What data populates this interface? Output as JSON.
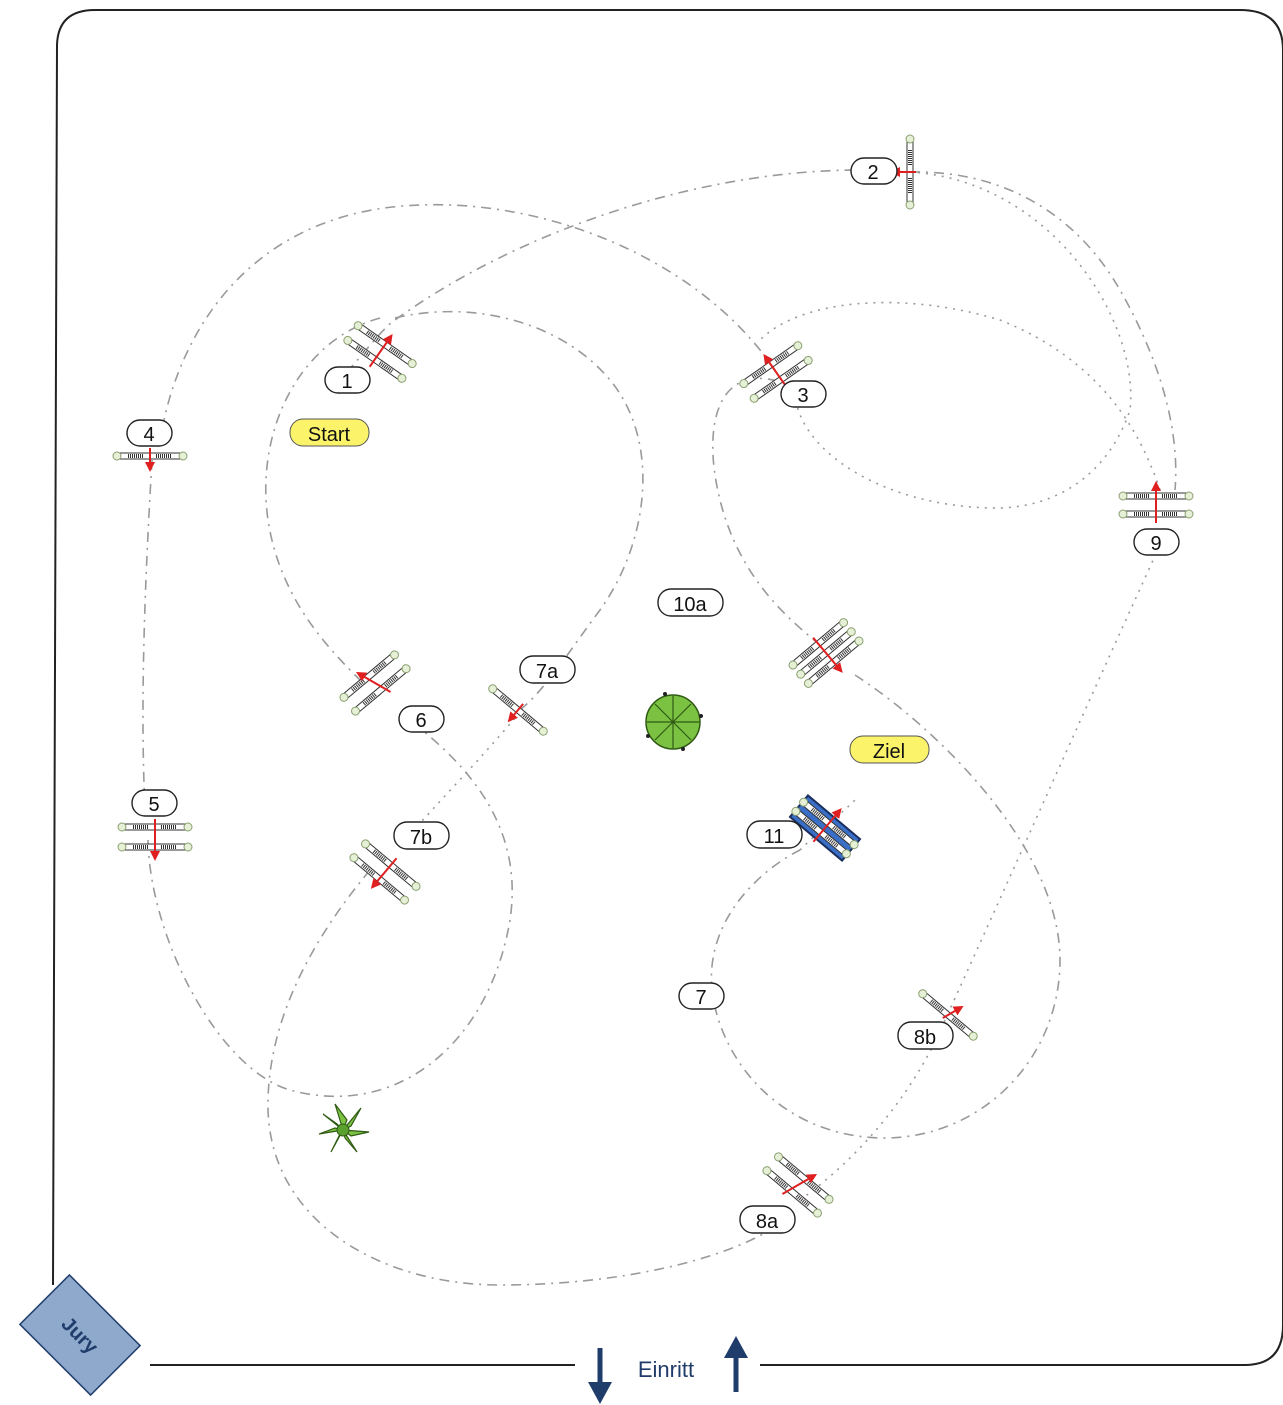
{
  "labels": {
    "start": "Start",
    "finish": "Ziel",
    "jury": "Jury",
    "entrance": "Einritt",
    "obstacle_1": "1",
    "obstacle_2": "2",
    "obstacle_3": "3",
    "obstacle_4": "4",
    "obstacle_5": "5",
    "obstacle_6": "6",
    "obstacle_7a": "7a",
    "obstacle_7b": "7b",
    "obstacle_7": "7",
    "obstacle_8a": "8a",
    "obstacle_8b": "8b",
    "obstacle_9": "9",
    "obstacle_10a": "10a",
    "obstacle_11": "11"
  },
  "colors": {
    "arena_border": "#222222",
    "course_line": "#9a9a9a",
    "start_finish_fill": "#fbf46a",
    "jury_fill": "#8ea9cc",
    "jury_text": "#1f3c6b",
    "entrance_arrow": "#1f3c6b",
    "jump_arrow": "#e02020",
    "water_jump": "#3a6fc8",
    "plant": "#7cc242"
  }
}
